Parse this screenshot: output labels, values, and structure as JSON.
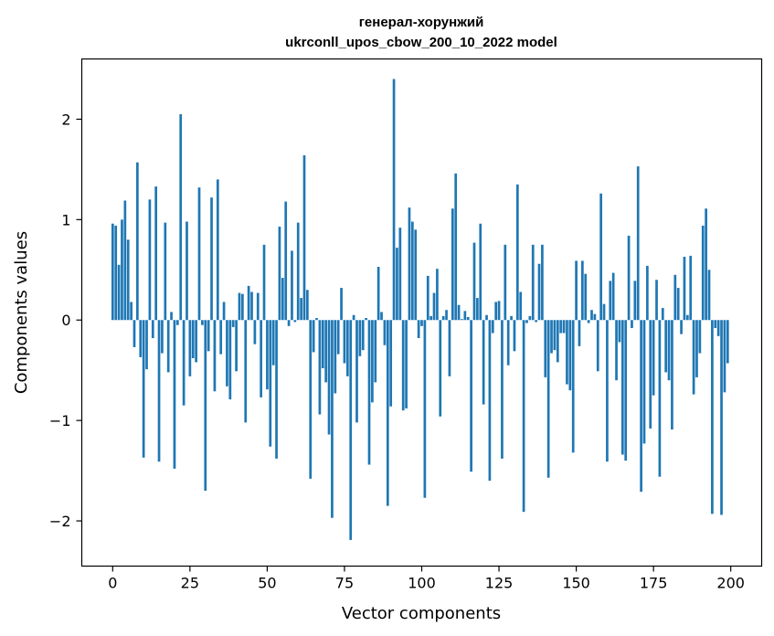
{
  "chart_data": {
    "type": "bar",
    "title": "генерал-хорунжий",
    "subtitle": "ukrconll_upos_cbow_200_10_2022 model",
    "xlabel": "Vector components",
    "ylabel": "Components values",
    "xlim": [
      -10,
      210
    ],
    "ylim": [
      -2.45,
      2.6
    ],
    "xticks": [
      0,
      25,
      50,
      75,
      100,
      125,
      150,
      175,
      200
    ],
    "xtick_labels": [
      "0",
      "25",
      "50",
      "75",
      "100",
      "125",
      "150",
      "175",
      "200"
    ],
    "yticks": [
      -2,
      -1,
      0,
      1,
      2
    ],
    "ytick_labels": [
      "−2",
      "−1",
      "0",
      "1",
      "2"
    ],
    "bar_color": "#1f77b4",
    "x": [
      0,
      1,
      2,
      3,
      4,
      5,
      6,
      7,
      8,
      9,
      10,
      11,
      12,
      13,
      14,
      15,
      16,
      17,
      18,
      19,
      20,
      21,
      22,
      23,
      24,
      25,
      26,
      27,
      28,
      29,
      30,
      31,
      32,
      33,
      34,
      35,
      36,
      37,
      38,
      39,
      40,
      41,
      42,
      43,
      44,
      45,
      46,
      47,
      48,
      49,
      50,
      51,
      52,
      53,
      54,
      55,
      56,
      57,
      58,
      59,
      60,
      61,
      62,
      63,
      64,
      65,
      66,
      67,
      68,
      69,
      70,
      71,
      72,
      73,
      74,
      75,
      76,
      77,
      78,
      79,
      80,
      81,
      82,
      83,
      84,
      85,
      86,
      87,
      88,
      89,
      90,
      91,
      92,
      93,
      94,
      95,
      96,
      97,
      98,
      99,
      100,
      101,
      102,
      103,
      104,
      105,
      106,
      107,
      108,
      109,
      110,
      111,
      112,
      113,
      114,
      115,
      116,
      117,
      118,
      119,
      120,
      121,
      122,
      123,
      124,
      125,
      126,
      127,
      128,
      129,
      130,
      131,
      132,
      133,
      134,
      135,
      136,
      137,
      138,
      139,
      140,
      141,
      142,
      143,
      144,
      145,
      146,
      147,
      148,
      149,
      150,
      151,
      152,
      153,
      154,
      155,
      156,
      157,
      158,
      159,
      160,
      161,
      162,
      163,
      164,
      165,
      166,
      167,
      168,
      169,
      170,
      171,
      172,
      173,
      174,
      175,
      176,
      177,
      178,
      179,
      180,
      181,
      182,
      183,
      184,
      185,
      186,
      187,
      188,
      189,
      190,
      191,
      192,
      193,
      194,
      195,
      196,
      197,
      198,
      199
    ],
    "values": [
      0.96,
      0.94,
      0.55,
      1.0,
      1.19,
      0.8,
      0.18,
      -0.27,
      1.57,
      -0.37,
      -1.37,
      -0.49,
      1.2,
      -0.18,
      1.33,
      -1.41,
      -0.33,
      0.97,
      -0.52,
      0.08,
      -1.48,
      -0.05,
      2.05,
      -0.85,
      0.98,
      -0.56,
      -0.38,
      -0.42,
      1.32,
      -0.05,
      -1.7,
      -0.31,
      1.22,
      -0.71,
      1.4,
      -0.34,
      0.18,
      -0.66,
      -0.79,
      -0.07,
      -0.51,
      0.27,
      0.26,
      -1.02,
      0.34,
      0.28,
      -0.24,
      0.27,
      -0.77,
      0.75,
      -0.69,
      -1.26,
      -0.45,
      -1.38,
      0.93,
      0.42,
      1.18,
      -0.06,
      0.69,
      -0.02,
      0.97,
      0.22,
      1.64,
      0.3,
      -1.58,
      -0.32,
      0.02,
      -0.94,
      -0.48,
      -0.62,
      -1.14,
      -1.97,
      -0.73,
      -0.34,
      0.32,
      -0.43,
      -0.56,
      -2.19,
      0.05,
      -1.02,
      -0.36,
      -0.3,
      0.02,
      -1.44,
      -0.82,
      -0.62,
      0.53,
      0.08,
      -0.25,
      -1.85,
      -0.86,
      2.4,
      0.72,
      0.92,
      -0.9,
      -0.88,
      1.12,
      0.98,
      0.9,
      -0.18,
      -0.06,
      -1.77,
      0.44,
      0.04,
      0.27,
      0.51,
      -0.96,
      0.04,
      0.1,
      -0.56,
      1.11,
      1.46,
      0.15,
      0.01,
      0.09,
      0.03,
      -1.51,
      0.77,
      0.22,
      0.96,
      -0.84,
      0.05,
      -1.6,
      -0.13,
      0.18,
      0.19,
      -1.38,
      0.75,
      -0.45,
      0.04,
      -0.31,
      1.35,
      0.28,
      -1.91,
      -0.03,
      0.04,
      0.75,
      -0.02,
      0.56,
      0.75,
      -0.57,
      -1.57,
      -0.33,
      -0.3,
      -0.42,
      -0.13,
      -0.13,
      -0.64,
      -0.7,
      -1.32,
      0.59,
      -0.26,
      0.59,
      0.46,
      -0.03,
      0.1,
      0.06,
      -0.51,
      1.26,
      0.16,
      -1.41,
      0.39,
      0.47,
      -0.6,
      -0.22,
      -1.34,
      -1.4,
      0.84,
      -0.08,
      0.39,
      1.53,
      -1.71,
      -1.23,
      0.54,
      -1.08,
      -0.75,
      0.4,
      -1.56,
      0.12,
      -0.52,
      -0.6,
      -1.09,
      0.45,
      0.32,
      -0.14,
      0.63,
      0.05,
      0.64,
      -0.74,
      -0.57,
      -0.33,
      0.94,
      1.11,
      0.5,
      -1.93,
      -0.08,
      -0.16,
      -1.94,
      -0.72,
      -0.43
    ]
  }
}
